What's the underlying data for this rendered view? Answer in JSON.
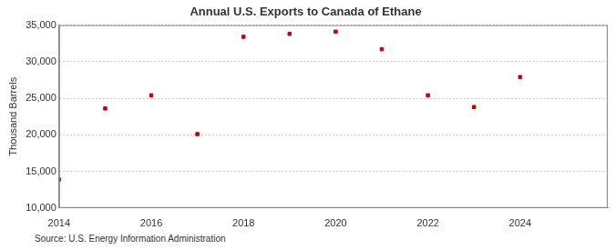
{
  "chart_data": {
    "type": "scatter",
    "title": "Annual U.S. Exports to Canada of Ethane",
    "y_label": "Thousand Barrels",
    "annotation": "Source: U.S. Energy Information Administration",
    "x": [
      2014,
      2015,
      2016,
      2017,
      2018,
      2019,
      2020,
      2021,
      2022,
      2023,
      2024
    ],
    "values": [
      13900,
      23600,
      25400,
      20100,
      33400,
      33800,
      34100,
      31700,
      25400,
      23800,
      27900
    ],
    "color": "#cc0000",
    "marker": "square",
    "xlim": [
      2014,
      2025.9
    ],
    "xticks": [
      2014,
      2016,
      2018,
      2020,
      2022,
      2024
    ],
    "ylim": [
      10000,
      35000
    ],
    "yticks": [
      {
        "value": 10000,
        "label": "10,000"
      },
      {
        "value": 15000,
        "label": "15,000"
      },
      {
        "value": 20000,
        "label": "20,000"
      },
      {
        "value": 25000,
        "label": "25,000"
      },
      {
        "value": 30000,
        "label": "30,000"
      },
      {
        "value": 35000,
        "label": "35,000"
      }
    ],
    "grid": true
  }
}
